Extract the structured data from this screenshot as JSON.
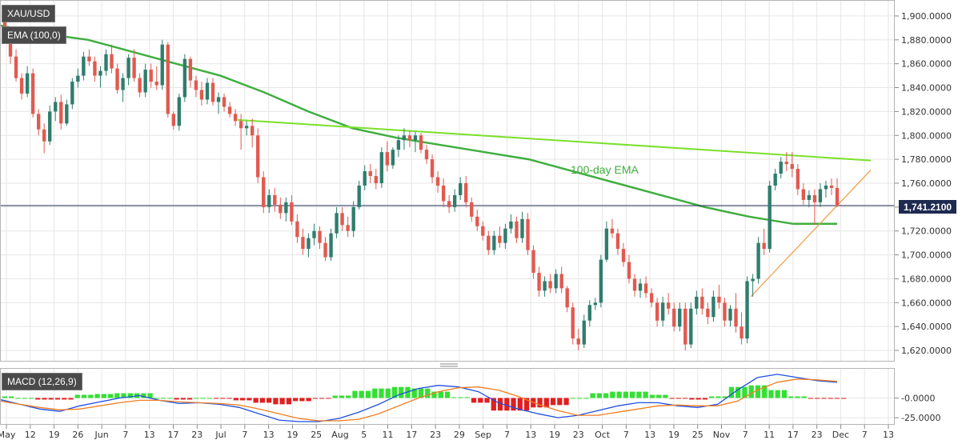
{
  "header": {
    "symbol": "XAU/USD",
    "indicator": "EMA (100,0)",
    "macd_label": "MACD (12,26,9)"
  },
  "colors": {
    "bull": "#2f7d6d",
    "bear": "#e05a50",
    "ema": "#3fae3f",
    "trendline_upper": "#7ae02a",
    "trendline_lower": "#f09a40",
    "price_line": "#1e2a50",
    "macd_line": "#1f4fe0",
    "signal_line": "#f07d20",
    "hist_pos": "#33e033",
    "hist_neg": "#e02020",
    "grid": "#e6e6e6"
  },
  "chart_data": [
    {
      "type": "candlestick",
      "title": "XAU/USD",
      "current_price": 1741.21,
      "current_price_label": "1,741.2100",
      "ylim": [
        1612,
        1912
      ],
      "y_ticks": [
        1620,
        1640,
        1660,
        1680,
        1700,
        1720,
        1740,
        1760,
        1780,
        1800,
        1820,
        1840,
        1860,
        1880,
        1900
      ],
      "y_tick_labels": [
        "1,620.0000",
        "1,640.0000",
        "1,660.0000",
        "1,680.0000",
        "1,700.0000",
        "1,720.0000",
        "1,740.0000",
        "1,760.0000",
        "1,780.0000",
        "1,800.0000",
        "1,820.0000",
        "1,840.0000",
        "1,860.0000",
        "1,880.0000",
        "1,900.0000"
      ],
      "x_tick_labels": [
        "May",
        "12",
        "19",
        "26",
        "Jun",
        "7",
        "13",
        "17",
        "23",
        "Jul",
        "7",
        "13",
        "19",
        "25",
        "Aug",
        "5",
        "11",
        "17",
        "23",
        "29",
        "Sep",
        "7",
        "13",
        "19",
        "23",
        "Oct",
        "7",
        "13",
        "19",
        "25",
        "Nov",
        "7",
        "11",
        "17",
        "23",
        "Dec",
        "7",
        "13"
      ],
      "candles": [
        [
          1899,
          1906,
          1885,
          1888
        ],
        [
          1888,
          1890,
          1860,
          1866
        ],
        [
          1866,
          1872,
          1845,
          1848
        ],
        [
          1848,
          1852,
          1830,
          1835
        ],
        [
          1835,
          1858,
          1832,
          1852
        ],
        [
          1852,
          1856,
          1815,
          1818
        ],
        [
          1818,
          1822,
          1800,
          1805
        ],
        [
          1805,
          1810,
          1785,
          1795
        ],
        [
          1795,
          1825,
          1792,
          1820
        ],
        [
          1820,
          1832,
          1812,
          1828
        ],
        [
          1828,
          1834,
          1805,
          1810
        ],
        [
          1810,
          1830,
          1808,
          1826
        ],
        [
          1826,
          1848,
          1822,
          1845
        ],
        [
          1845,
          1856,
          1840,
          1850
        ],
        [
          1850,
          1870,
          1846,
          1866
        ],
        [
          1866,
          1872,
          1858,
          1862
        ],
        [
          1862,
          1866,
          1845,
          1850
        ],
        [
          1850,
          1858,
          1840,
          1854
        ],
        [
          1854,
          1872,
          1850,
          1868
        ],
        [
          1868,
          1876,
          1852,
          1856
        ],
        [
          1856,
          1860,
          1835,
          1838
        ],
        [
          1838,
          1852,
          1828,
          1848
        ],
        [
          1848,
          1868,
          1842,
          1865
        ],
        [
          1865,
          1872,
          1845,
          1848
        ],
        [
          1848,
          1852,
          1832,
          1836
        ],
        [
          1836,
          1860,
          1832,
          1855
        ],
        [
          1855,
          1860,
          1840,
          1845
        ],
        [
          1845,
          1858,
          1838,
          1842
        ],
        [
          1842,
          1880,
          1838,
          1876
        ],
        [
          1876,
          1878,
          1815,
          1818
        ],
        [
          1818,
          1820,
          1805,
          1808
        ],
        [
          1808,
          1835,
          1804,
          1832
        ],
        [
          1832,
          1868,
          1828,
          1864
        ],
        [
          1864,
          1866,
          1840,
          1846
        ],
        [
          1846,
          1850,
          1832,
          1838
        ],
        [
          1838,
          1845,
          1825,
          1830
        ],
        [
          1830,
          1848,
          1826,
          1844
        ],
        [
          1844,
          1848,
          1825,
          1828
        ],
        [
          1828,
          1836,
          1818,
          1832
        ],
        [
          1832,
          1835,
          1820,
          1824
        ],
        [
          1824,
          1828,
          1815,
          1818
        ],
        [
          1818,
          1822,
          1808,
          1812
        ],
        [
          1812,
          1818,
          1788,
          1806
        ],
        [
          1806,
          1812,
          1800,
          1808
        ],
        [
          1808,
          1814,
          1790,
          1800
        ],
        [
          1800,
          1806,
          1760,
          1765
        ],
        [
          1765,
          1770,
          1735,
          1740
        ],
        [
          1740,
          1755,
          1735,
          1750
        ],
        [
          1750,
          1756,
          1736,
          1742
        ],
        [
          1742,
          1748,
          1730,
          1735
        ],
        [
          1735,
          1748,
          1728,
          1744
        ],
        [
          1744,
          1750,
          1725,
          1728
        ],
        [
          1728,
          1734,
          1710,
          1715
        ],
        [
          1715,
          1722,
          1700,
          1705
        ],
        [
          1705,
          1718,
          1698,
          1714
        ],
        [
          1714,
          1726,
          1708,
          1720
        ],
        [
          1720,
          1724,
          1705,
          1710
        ],
        [
          1710,
          1715,
          1695,
          1698
        ],
        [
          1698,
          1722,
          1695,
          1718
        ],
        [
          1718,
          1740,
          1714,
          1735
        ],
        [
          1735,
          1740,
          1720,
          1725
        ],
        [
          1725,
          1732,
          1715,
          1720
        ],
        [
          1720,
          1745,
          1715,
          1740
        ],
        [
          1740,
          1762,
          1738,
          1758
        ],
        [
          1758,
          1775,
          1754,
          1770
        ],
        [
          1770,
          1776,
          1760,
          1766
        ],
        [
          1766,
          1772,
          1755,
          1760
        ],
        [
          1760,
          1790,
          1756,
          1786
        ],
        [
          1786,
          1795,
          1770,
          1775
        ],
        [
          1775,
          1790,
          1772,
          1788
        ],
        [
          1788,
          1800,
          1782,
          1796
        ],
        [
          1796,
          1806,
          1788,
          1800
        ],
        [
          1800,
          1804,
          1790,
          1796
        ],
        [
          1796,
          1803,
          1786,
          1800
        ],
        [
          1800,
          1802,
          1785,
          1788
        ],
        [
          1788,
          1792,
          1776,
          1780
        ],
        [
          1780,
          1784,
          1760,
          1765
        ],
        [
          1765,
          1770,
          1752,
          1758
        ],
        [
          1758,
          1764,
          1740,
          1745
        ],
        [
          1745,
          1750,
          1735,
          1740
        ],
        [
          1740,
          1755,
          1736,
          1750
        ],
        [
          1750,
          1765,
          1746,
          1760
        ],
        [
          1760,
          1766,
          1740,
          1744
        ],
        [
          1744,
          1748,
          1728,
          1732
        ],
        [
          1732,
          1738,
          1720,
          1724
        ],
        [
          1724,
          1728,
          1712,
          1716
        ],
        [
          1716,
          1720,
          1700,
          1704
        ],
        [
          1704,
          1720,
          1700,
          1716
        ],
        [
          1716,
          1724,
          1706,
          1710
        ],
        [
          1710,
          1726,
          1705,
          1722
        ],
        [
          1722,
          1734,
          1718,
          1728
        ],
        [
          1728,
          1732,
          1710,
          1714
        ],
        [
          1714,
          1736,
          1710,
          1730
        ],
        [
          1730,
          1735,
          1700,
          1704
        ],
        [
          1704,
          1708,
          1680,
          1685
        ],
        [
          1685,
          1690,
          1665,
          1670
        ],
        [
          1670,
          1682,
          1665,
          1678
        ],
        [
          1678,
          1684,
          1668,
          1672
        ],
        [
          1672,
          1688,
          1668,
          1684
        ],
        [
          1684,
          1690,
          1668,
          1672
        ],
        [
          1672,
          1674,
          1652,
          1656
        ],
        [
          1656,
          1660,
          1625,
          1630
        ],
        [
          1630,
          1638,
          1620,
          1625
        ],
        [
          1625,
          1650,
          1622,
          1645
        ],
        [
          1645,
          1662,
          1640,
          1658
        ],
        [
          1658,
          1664,
          1654,
          1660
        ],
        [
          1660,
          1700,
          1656,
          1696
        ],
        [
          1696,
          1728,
          1694,
          1722
        ],
        [
          1722,
          1730,
          1714,
          1718
        ],
        [
          1718,
          1722,
          1700,
          1705
        ],
        [
          1705,
          1710,
          1690,
          1694
        ],
        [
          1694,
          1700,
          1676,
          1680
        ],
        [
          1680,
          1684,
          1665,
          1670
        ],
        [
          1670,
          1680,
          1664,
          1676
        ],
        [
          1676,
          1682,
          1664,
          1668
        ],
        [
          1668,
          1672,
          1656,
          1660
        ],
        [
          1660,
          1664,
          1640,
          1645
        ],
        [
          1645,
          1665,
          1640,
          1660
        ],
        [
          1660,
          1668,
          1650,
          1655
        ],
        [
          1655,
          1660,
          1636,
          1640
        ],
        [
          1640,
          1660,
          1636,
          1655
        ],
        [
          1655,
          1660,
          1620,
          1625
        ],
        [
          1625,
          1660,
          1622,
          1655
        ],
        [
          1655,
          1670,
          1650,
          1665
        ],
        [
          1665,
          1672,
          1650,
          1655
        ],
        [
          1655,
          1660,
          1642,
          1648
        ],
        [
          1648,
          1670,
          1644,
          1665
        ],
        [
          1665,
          1675,
          1655,
          1660
        ],
        [
          1660,
          1664,
          1640,
          1645
        ],
        [
          1645,
          1658,
          1640,
          1655
        ],
        [
          1655,
          1668,
          1635,
          1640
        ],
        [
          1640,
          1652,
          1625,
          1630
        ],
        [
          1630,
          1682,
          1626,
          1678
        ],
        [
          1678,
          1684,
          1665,
          1680
        ],
        [
          1680,
          1715,
          1676,
          1710
        ],
        [
          1710,
          1722,
          1700,
          1705
        ],
        [
          1705,
          1762,
          1702,
          1758
        ],
        [
          1758,
          1772,
          1754,
          1768
        ],
        [
          1768,
          1782,
          1764,
          1778
        ],
        [
          1778,
          1786,
          1770,
          1776
        ],
        [
          1776,
          1786,
          1765,
          1772
        ],
        [
          1772,
          1776,
          1750,
          1755
        ],
        [
          1755,
          1760,
          1742,
          1746
        ],
        [
          1746,
          1754,
          1740,
          1750
        ],
        [
          1750,
          1755,
          1725,
          1744
        ],
        [
          1744,
          1760,
          1740,
          1755
        ],
        [
          1755,
          1762,
          1748,
          1758
        ],
        [
          1758,
          1764,
          1750,
          1756
        ],
        [
          1756,
          1764,
          1740,
          1741
        ]
      ],
      "ema_100": [
        1892,
        1885,
        1880,
        1870,
        1860,
        1850,
        1836,
        1820,
        1806,
        1798,
        1792,
        1786,
        1780,
        1770,
        1760,
        1750,
        1740,
        1732,
        1726,
        1726
      ],
      "trendline_upper": {
        "from": [
          1813,
          "early Jul"
        ],
        "to": [
          1779,
          "end Nov"
        ]
      },
      "trendline_lower": {
        "from": [
          1665,
          "early Nov"
        ],
        "to": [
          1771,
          "early Dec"
        ]
      },
      "annotations": [
        "100-day EMA"
      ]
    },
    {
      "type": "bar",
      "title": "MACD (12,26,9)",
      "ylim": [
        -32,
        36
      ],
      "y_ticks": [
        0,
        -25
      ],
      "y_tick_labels": [
        "-0.0000",
        "-25.0000"
      ],
      "macd": [
        -2,
        -8,
        -14,
        -17,
        -10,
        -5,
        0,
        3,
        -3,
        -7,
        -6,
        -8,
        -12,
        -20,
        -28,
        -30,
        -30,
        -26,
        -18,
        -8,
        4,
        12,
        16,
        14,
        8,
        -6,
        -14,
        -20,
        -25,
        -22,
        -16,
        -10,
        -6,
        -6,
        -10,
        -12,
        -8,
        10,
        26,
        30,
        26,
        22,
        20
      ],
      "signal": [
        -4,
        -8,
        -12,
        -15,
        -14,
        -10,
        -6,
        -3,
        -3,
        -5,
        -6,
        -7,
        -9,
        -14,
        -20,
        -26,
        -29,
        -29,
        -27,
        -20,
        -10,
        0,
        8,
        13,
        14,
        10,
        2,
        -8,
        -16,
        -22,
        -22,
        -18,
        -14,
        -10,
        -9,
        -10,
        -10,
        -4,
        10,
        20,
        24,
        23,
        21
      ],
      "histogram": [
        2,
        0,
        -2,
        -2,
        4,
        5,
        6,
        6,
        0,
        -2,
        0,
        -1,
        -3,
        -6,
        -8,
        -4,
        -1,
        3,
        9,
        12,
        14,
        12,
        8,
        1,
        -6,
        -16,
        -16,
        -12,
        -9,
        0,
        6,
        8,
        8,
        4,
        -1,
        -2,
        2,
        14,
        16,
        10,
        2,
        -1,
        -1
      ]
    }
  ]
}
